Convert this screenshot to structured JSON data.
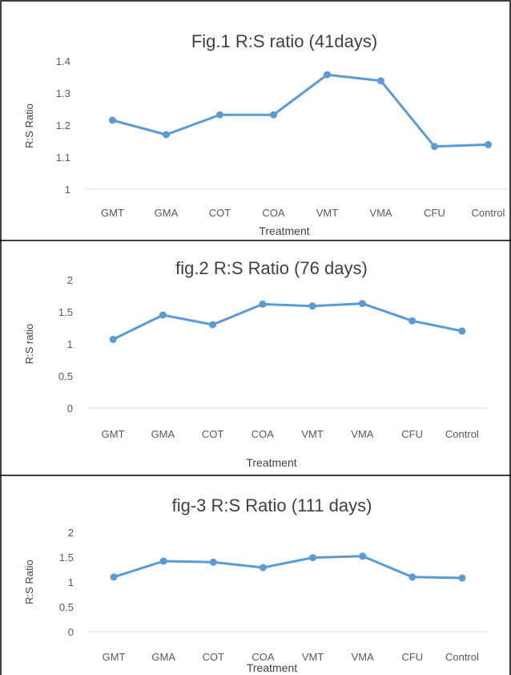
{
  "charts": [
    {
      "type": "line",
      "title": "Fig.1 R:S ratio (41days)",
      "xlabel": "Treatment",
      "ylabel": "R:S Ratio",
      "categories": [
        "GMT",
        "GMA",
        "COT",
        "COA",
        "VMT",
        "VMA",
        "CFU",
        "Control"
      ],
      "values": [
        1.215,
        1.17,
        1.232,
        1.232,
        1.357,
        1.338,
        1.133,
        1.139
      ],
      "ylim": [
        1,
        1.4
      ],
      "yticks": [
        1,
        1.1,
        1.2,
        1.3,
        1.4
      ],
      "ytick_labels": [
        "1",
        "1.1",
        "1.2",
        "1.3",
        "1.4"
      ],
      "color": "#5b9bd5",
      "grid": false
    },
    {
      "type": "line",
      "title": "fig.2 R:S Ratio (76 days)",
      "xlabel": "Treatment",
      "ylabel": "R:S ratio",
      "categories": [
        "GMT",
        "GMA",
        "COT",
        "COA",
        "VMT",
        "VMA",
        "CFU",
        "Control"
      ],
      "values": [
        1.07,
        1.45,
        1.3,
        1.62,
        1.59,
        1.63,
        1.36,
        1.2
      ],
      "ylim": [
        0,
        2
      ],
      "yticks": [
        0,
        0.5,
        1,
        1.5,
        2
      ],
      "ytick_labels": [
        "0",
        "0.5",
        "1",
        "1.5",
        "2"
      ],
      "color": "#5b9bd5",
      "grid": false
    },
    {
      "type": "line",
      "title": "fig-3 R:S Ratio (111 days)",
      "xlabel": "Treatment",
      "ylabel": "R:S Ratio",
      "categories": [
        "GMT",
        "GMA",
        "COT",
        "COA",
        "VMT",
        "VMA",
        "CFU",
        "Control"
      ],
      "values": [
        1.1,
        1.42,
        1.4,
        1.29,
        1.49,
        1.52,
        1.1,
        1.08
      ],
      "ylim": [
        0,
        2
      ],
      "yticks": [
        0,
        0.5,
        1,
        1.5,
        2
      ],
      "ytick_labels": [
        "0",
        "0.5",
        "1",
        "1.5",
        "2"
      ],
      "color": "#5b9bd5",
      "grid": false
    }
  ]
}
